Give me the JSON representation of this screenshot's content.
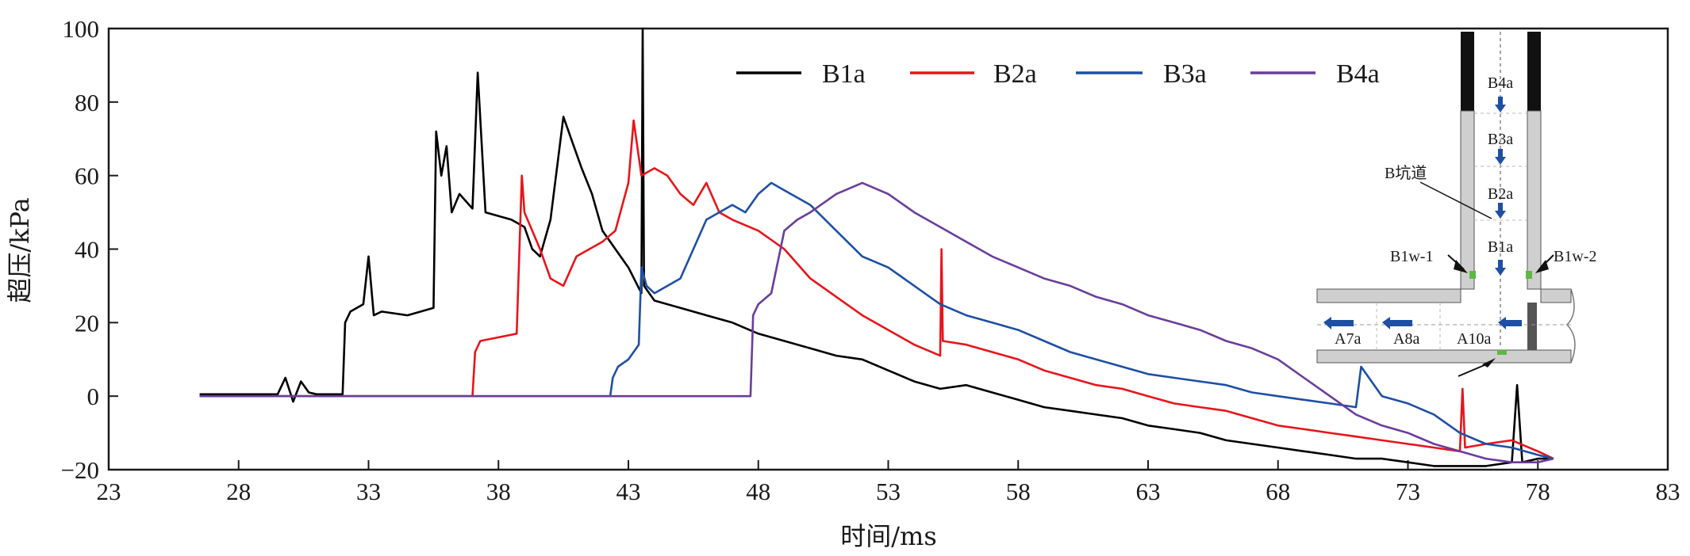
{
  "chart_data": {
    "type": "line",
    "xlabel": "时间/ms",
    "ylabel": "超压/kPa",
    "xlim": [
      23,
      83
    ],
    "ylim": [
      -20,
      100
    ],
    "xticks": [
      23,
      28,
      33,
      38,
      43,
      48,
      53,
      58,
      63,
      68,
      73,
      78,
      83
    ],
    "yticks": [
      -20,
      0,
      20,
      40,
      60,
      80,
      100
    ],
    "grid": false,
    "legend_placement": "top-center",
    "colors": {
      "B1a": "#000000",
      "B2a": "#e8141b",
      "B3a": "#1e4fa3",
      "B4a": "#6a3d9a"
    },
    "series": [
      {
        "name": "B1a",
        "color": "#000000",
        "x": [
          26.5,
          29.5,
          29.8,
          30.1,
          30.4,
          30.7,
          31.0,
          32.0,
          32.1,
          32.3,
          32.8,
          33.0,
          33.2,
          33.5,
          34.5,
          35.5,
          35.6,
          35.8,
          36.0,
          36.2,
          36.5,
          37.0,
          37.2,
          37.5,
          38.0,
          38.5,
          39.0,
          39.3,
          39.6,
          40.0,
          40.5,
          40.8,
          41.2,
          41.6,
          42.0,
          42.5,
          43.0,
          43.5,
          43.55,
          43.6,
          44.0,
          45.0,
          46.0,
          47.0,
          48.0,
          49.0,
          50.0,
          51.0,
          52.0,
          53.0,
          54.0,
          55.0,
          56.0,
          57.0,
          58.0,
          59.0,
          60.0,
          61.0,
          62.0,
          63.0,
          64.0,
          65.0,
          66.0,
          67.0,
          68.0,
          69.0,
          70.0,
          71.0,
          72.0,
          73.0,
          74.0,
          75.0,
          76.0,
          77.0,
          77.2,
          77.4,
          78.0,
          78.6
        ],
        "y": [
          0.5,
          0.5,
          5.0,
          -1.5,
          4.0,
          1.0,
          0.5,
          0.5,
          20.0,
          23.0,
          25.0,
          38.0,
          22.0,
          23.0,
          22.0,
          24.0,
          72.0,
          60.0,
          68.0,
          50.0,
          55.0,
          51.0,
          88.0,
          50.0,
          49.0,
          48.0,
          46.0,
          40.0,
          38.0,
          48.0,
          76.0,
          70.0,
          62.0,
          55.0,
          45.0,
          40.0,
          35.0,
          28.0,
          100.0,
          30.0,
          26.0,
          24.0,
          22.0,
          20.0,
          17.0,
          15.0,
          13.0,
          11.0,
          10.0,
          7.0,
          4.0,
          2.0,
          3.0,
          1.0,
          -1.0,
          -3.0,
          -4.0,
          -5.0,
          -6.0,
          -8.0,
          -9.0,
          -10.0,
          -12.0,
          -13.0,
          -14.0,
          -15.0,
          -16.0,
          -17.0,
          -17.0,
          -18.0,
          -19.0,
          -19.0,
          -19.0,
          -18.0,
          3.0,
          -18.0,
          -17.0,
          -17.0
        ]
      },
      {
        "name": "B2a",
        "color": "#e8141b",
        "x": [
          26.5,
          37.0,
          37.1,
          37.3,
          38.0,
          38.7,
          38.9,
          39.0,
          39.3,
          39.6,
          40.0,
          40.5,
          41.0,
          41.5,
          42.0,
          42.5,
          43.0,
          43.2,
          43.5,
          44.0,
          44.5,
          45.0,
          45.5,
          46.0,
          46.5,
          47.0,
          48.0,
          49.0,
          50.0,
          51.0,
          52.0,
          53.0,
          54.0,
          55.0,
          55.05,
          55.1,
          56.0,
          57.0,
          58.0,
          59.0,
          60.0,
          61.0,
          62.0,
          63.0,
          64.0,
          65.0,
          66.0,
          67.0,
          68.0,
          69.0,
          70.0,
          71.0,
          72.0,
          73.0,
          74.0,
          75.0,
          75.1,
          75.2,
          76.0,
          77.0,
          78.0,
          78.6
        ],
        "y": [
          0.0,
          0.0,
          12.0,
          15.0,
          16.0,
          17.0,
          60.0,
          50.0,
          45.0,
          40.0,
          32.0,
          30.0,
          38.0,
          40.0,
          42.0,
          45.0,
          58.0,
          75.0,
          60.0,
          62.0,
          60.0,
          55.0,
          52.0,
          58.0,
          50.0,
          48.0,
          45.0,
          40.0,
          32.0,
          27.0,
          22.0,
          18.0,
          14.0,
          11.0,
          40.0,
          15.0,
          14.0,
          12.0,
          10.0,
          7.0,
          5.0,
          3.0,
          2.0,
          0.0,
          -2.0,
          -3.0,
          -4.0,
          -6.0,
          -8.0,
          -9.0,
          -10.0,
          -11.0,
          -12.0,
          -13.0,
          -14.0,
          -15.0,
          2.0,
          -14.0,
          -13.0,
          -12.0,
          -15.0,
          -17.0
        ]
      },
      {
        "name": "B3a",
        "color": "#1e4fa3",
        "x": [
          26.5,
          42.3,
          42.4,
          42.6,
          43.0,
          43.4,
          43.5,
          43.7,
          44.0,
          45.0,
          46.0,
          47.0,
          47.5,
          48.0,
          48.5,
          49.0,
          50.0,
          51.0,
          52.0,
          53.0,
          54.0,
          55.0,
          56.0,
          57.0,
          58.0,
          59.0,
          60.0,
          61.0,
          62.0,
          63.0,
          64.0,
          65.0,
          66.0,
          67.0,
          68.0,
          69.0,
          70.0,
          71.0,
          71.2,
          72.0,
          73.0,
          74.0,
          75.0,
          76.0,
          77.0,
          78.0,
          78.6
        ],
        "y": [
          0.0,
          0.0,
          5.0,
          8.0,
          10.0,
          14.0,
          35.0,
          30.0,
          28.0,
          32.0,
          48.0,
          52.0,
          50.0,
          55.0,
          58.0,
          56.0,
          52.0,
          45.0,
          38.0,
          35.0,
          30.0,
          25.0,
          22.0,
          20.0,
          18.0,
          15.0,
          12.0,
          10.0,
          8.0,
          6.0,
          5.0,
          4.0,
          3.0,
          1.0,
          0.0,
          -1.0,
          -2.0,
          -3.0,
          8.0,
          0.0,
          -2.0,
          -5.0,
          -10.0,
          -13.0,
          -14.0,
          -16.0,
          -17.0
        ]
      },
      {
        "name": "B4a",
        "color": "#6a3d9a",
        "x": [
          26.5,
          47.7,
          47.8,
          48.0,
          48.5,
          49.0,
          49.5,
          50.0,
          51.0,
          52.0,
          53.0,
          54.0,
          55.0,
          56.0,
          57.0,
          58.0,
          59.0,
          60.0,
          61.0,
          62.0,
          63.0,
          64.0,
          65.0,
          66.0,
          67.0,
          68.0,
          69.0,
          70.0,
          71.0,
          72.0,
          73.0,
          74.0,
          75.0,
          76.0,
          77.0,
          78.0,
          78.6
        ],
        "y": [
          0.0,
          0.0,
          22.0,
          25.0,
          28.0,
          45.0,
          48.0,
          50.0,
          55.0,
          58.0,
          55.0,
          50.0,
          46.0,
          42.0,
          38.0,
          35.0,
          32.0,
          30.0,
          27.0,
          25.0,
          22.0,
          20.0,
          18.0,
          15.0,
          13.0,
          10.0,
          5.0,
          0.0,
          -5.0,
          -8.0,
          -10.0,
          -13.0,
          -15.0,
          -17.0,
          -18.0,
          -18.0,
          -17.0
        ]
      }
    ]
  },
  "inset": {
    "tunnel_label": "B坑道",
    "gauges_vertical": [
      "B4a",
      "B3a",
      "B2a",
      "B1a"
    ],
    "gauges_horizontal": [
      "A7a",
      "A8a",
      "A10a"
    ],
    "wall_gauges": [
      "B1w-1",
      "B1w-2"
    ]
  }
}
